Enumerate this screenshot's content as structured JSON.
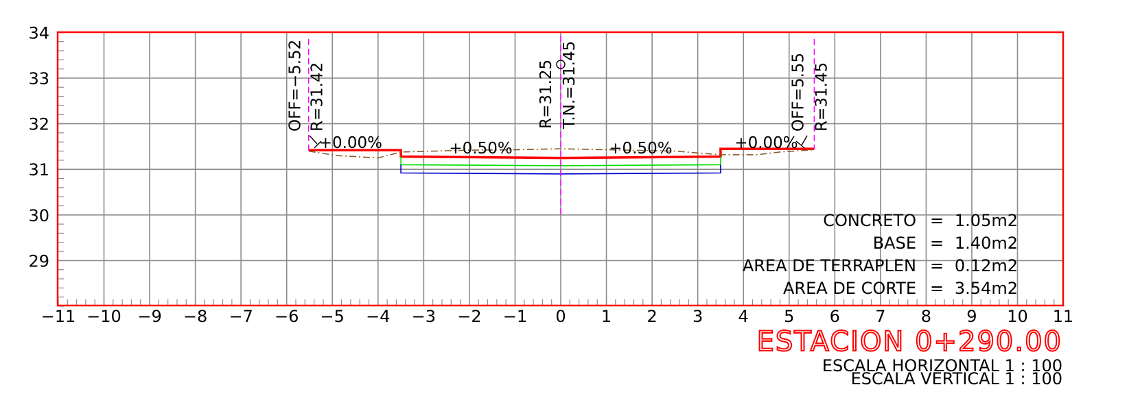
{
  "chart_data": {
    "type": "line",
    "xlim": [
      -11,
      11
    ],
    "ylim": [
      28,
      34
    ],
    "grid": true,
    "x_ticks": [
      -11,
      -10,
      -9,
      -8,
      -7,
      -6,
      -5,
      -4,
      -3,
      -2,
      -1,
      0,
      1,
      2,
      3,
      4,
      5,
      6,
      7,
      8,
      9,
      10,
      11
    ],
    "y_ticks": [
      29,
      30,
      31,
      32,
      33,
      34
    ],
    "series": [
      {
        "name": "",
        "color": "#ff0000",
        "points": [
          [
            -5.52,
            31.42
          ],
          [
            -3.5,
            31.42
          ],
          [
            -3.5,
            31.28
          ],
          [
            0,
            31.25
          ],
          [
            3.5,
            31.28
          ],
          [
            3.5,
            31.45
          ],
          [
            5.55,
            31.45
          ]
        ]
      },
      {
        "name": "",
        "color": "#00dd00",
        "points": [
          [
            -3.5,
            31.28
          ],
          [
            -3.5,
            31.1
          ],
          [
            0,
            31.08
          ],
          [
            3.5,
            31.1
          ],
          [
            3.5,
            31.28
          ]
        ]
      },
      {
        "name": "",
        "color": "#0000cc",
        "points": [
          [
            -3.5,
            31.1
          ],
          [
            -3.5,
            30.92
          ],
          [
            0,
            30.9
          ],
          [
            3.5,
            30.92
          ],
          [
            3.5,
            31.1
          ]
        ]
      },
      {
        "name": "",
        "color": "#8b5a2b",
        "points": [
          [
            -5.52,
            31.4
          ],
          [
            -4.9,
            31.3
          ],
          [
            -4.5,
            31.28
          ],
          [
            -4.0,
            31.25
          ],
          [
            -3.5,
            31.38
          ],
          [
            -2.0,
            31.42
          ],
          [
            -1.0,
            31.43
          ],
          [
            0,
            31.45
          ],
          [
            1.0,
            31.43
          ],
          [
            2.5,
            31.4
          ],
          [
            3.5,
            31.32
          ],
          [
            4.3,
            31.32
          ],
          [
            4.8,
            31.38
          ],
          [
            5.55,
            31.43
          ]
        ]
      }
    ],
    "annotations": [
      {
        "text": "OFF=−5.52",
        "x": -5.52,
        "rotated": true
      },
      {
        "text": "R=31.42",
        "x": -5.52,
        "rotated": true
      },
      {
        "text": "R=31.25",
        "x": 0,
        "rotated": true
      },
      {
        "text": "T.N.=31.45",
        "x": 0,
        "rotated": true
      },
      {
        "text": "OFF=5.55",
        "x": 5.55,
        "rotated": true
      },
      {
        "text": "R=31.45",
        "x": 5.55,
        "rotated": true
      },
      {
        "text": "+0.00%",
        "x": -4.6
      },
      {
        "text": "+0.50%",
        "x": -1.75
      },
      {
        "text": "+0.50%",
        "x": 1.75
      },
      {
        "text": "+0.00%",
        "x": 4.5
      }
    ]
  },
  "areas": [
    {
      "label": "CONCRETO",
      "eq": "=",
      "value": "1.05m2"
    },
    {
      "label": "BASE",
      "eq": "=",
      "value": "1.40m2"
    },
    {
      "label": "AREA DE TERRAPLEN",
      "eq": "=",
      "value": "0.12m2"
    },
    {
      "label": "AREA DE CORTE",
      "eq": "=",
      "value": "3.54m2"
    }
  ],
  "station": "ESTACION 0+290.00",
  "scale_h": "ESCALA HORIZONTAL 1 : 100",
  "scale_v": "ESCALA VERTICAL 1 : 100",
  "colors": {
    "frame": "#ff0000",
    "grid": "#8c8c8c",
    "axis_line": "#ff00ff",
    "text": "#000000"
  }
}
